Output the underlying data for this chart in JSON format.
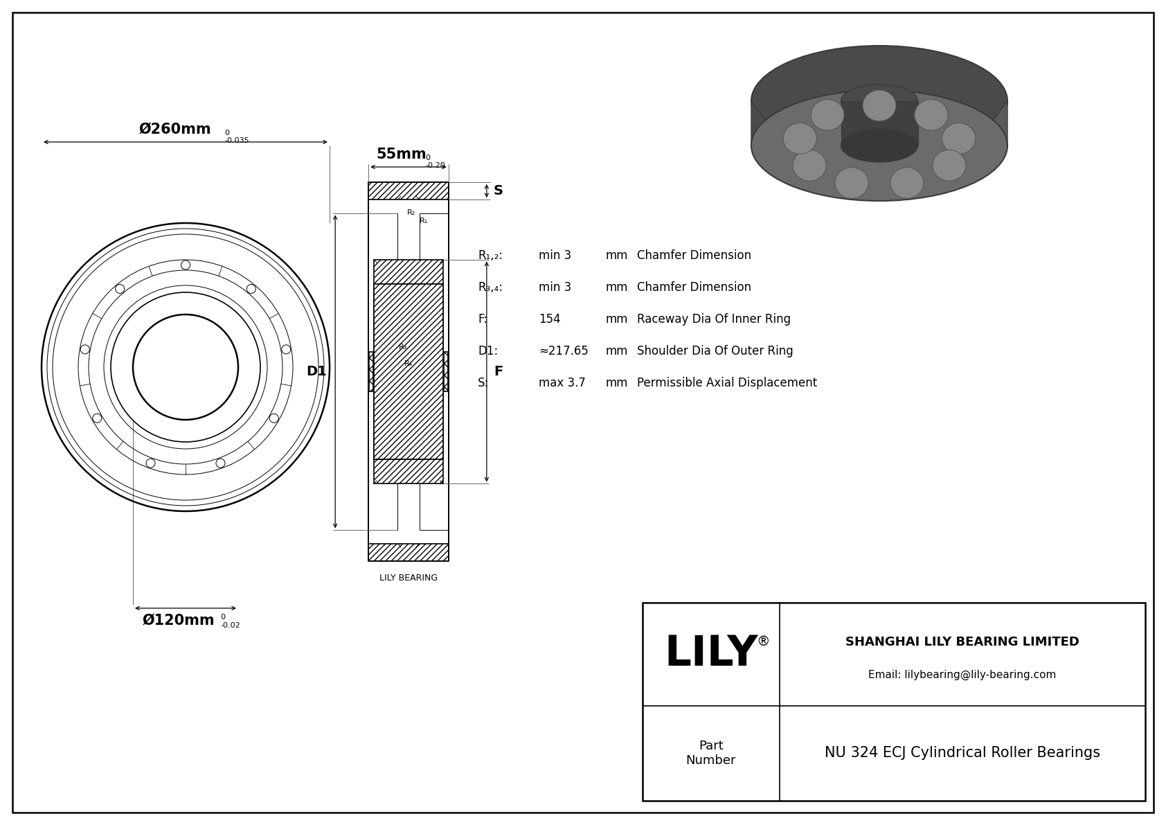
{
  "bg_color": "#ffffff",
  "line_color": "#000000",
  "title": "NU 324 ECJ Cylindrical Roller Bearings",
  "company": "SHANGHAI LILY BEARING LIMITED",
  "email": "Email: lilybearing@lily-bearing.com",
  "part_label": "Part\nNumber",
  "lily_text": "LILY",
  "lily_bearing_label": "LILY BEARING",
  "dim_outer": "Ø260mm",
  "dim_outer_tol_top": "0",
  "dim_outer_tol_bot": "-0.035",
  "dim_inner": "Ø120mm",
  "dim_inner_tol_top": "0",
  "dim_inner_tol_bot": "-0.02",
  "dim_width": "55mm",
  "dim_width_tol_top": "0",
  "dim_width_tol_bot": "-0.20",
  "params": [
    {
      "label": "R₁,₂:",
      "value": "min 3",
      "unit": "mm",
      "desc": "Chamfer Dimension"
    },
    {
      "label": "R₃,₄:",
      "value": "min 3",
      "unit": "mm",
      "desc": "Chamfer Dimension"
    },
    {
      "label": "F:",
      "value": "154",
      "unit": "mm",
      "desc": "Raceway Dia Of Inner Ring"
    },
    {
      "label": "D1:",
      "value": "≈217.65",
      "unit": "mm",
      "desc": "Shoulder Dia Of Outer Ring"
    },
    {
      "label": "S:",
      "value": "max 3.7",
      "unit": "mm",
      "desc": "Permissible Axial Displacement"
    }
  ]
}
